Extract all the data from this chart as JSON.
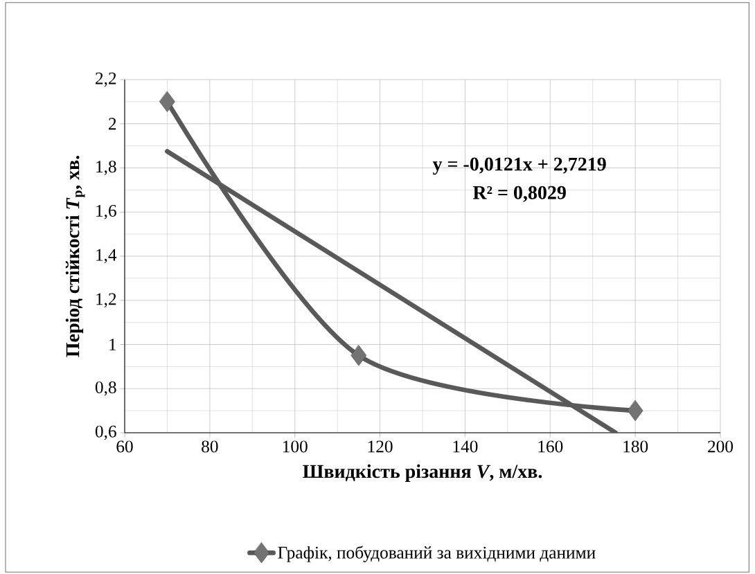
{
  "chart_data": {
    "type": "line",
    "xlabel": "Швидкість різання *V*, м/хв.",
    "ylabel": "Період  стійкості  *T*$_{p}$, хв.",
    "xlim": [
      60,
      200
    ],
    "xticks": [
      60,
      80,
      100,
      120,
      140,
      160,
      180,
      200
    ],
    "ylim": [
      0.6,
      2.2
    ],
    "yticks": [
      {
        "value": 0.6,
        "label": "0,6"
      },
      {
        "value": 0.8,
        "label": "0,8"
      },
      1,
      {
        "value": 1.2,
        "label": "1,2"
      },
      {
        "value": 1.4,
        "label": "1,4"
      },
      {
        "value": 1.6,
        "label": "1,6"
      },
      {
        "value": 1.8,
        "label": "1,8"
      },
      2,
      {
        "value": 2.2,
        "label": "2,2"
      }
    ],
    "grid": true,
    "legend": "bottom",
    "annotations": [
      "y = -0,0121x + 2,7219",
      "R² = 0,8029"
    ],
    "series": [
      {
        "name": "Графік, побудований за вихідними даними",
        "color": "#595959",
        "marker": "diamond",
        "x": [
          70,
          115,
          180
        ],
        "values": [
          2.1,
          0.95,
          0.7
        ]
      },
      {
        "color": "#595959",
        "marker": "none",
        "x": [
          70,
          175.4
        ],
        "values": [
          1.875,
          0.6
        ]
      }
    ]
  }
}
